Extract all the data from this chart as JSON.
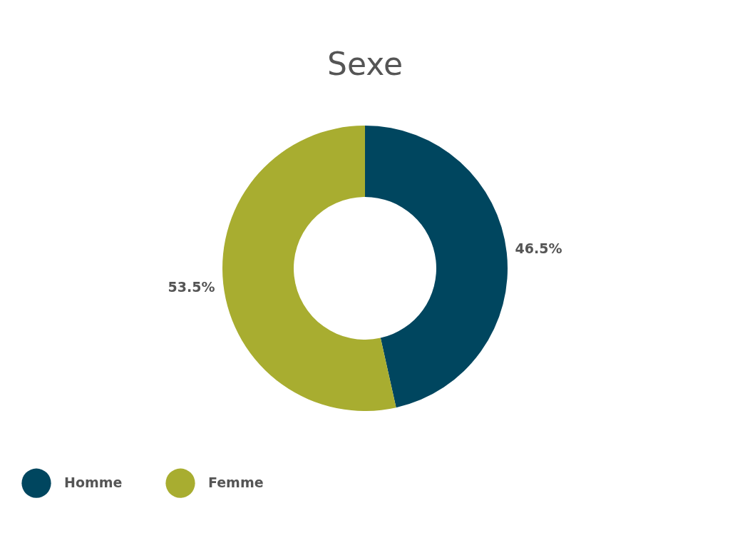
{
  "chart_data": {
    "type": "donut",
    "title": "Sexe",
    "categories": [
      "Homme",
      "Femme"
    ],
    "values": [
      46.5,
      53.5
    ],
    "colors": [
      "#00465f",
      "#a8ad30"
    ],
    "value_labels": [
      "46.5%",
      "53.5%"
    ],
    "legend": "bottom"
  }
}
